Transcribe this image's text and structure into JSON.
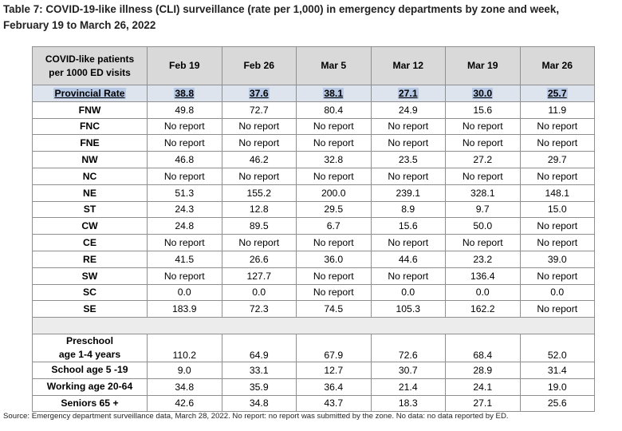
{
  "title_line1": "Table 7:  COVID-19-like illness (CLI) surveillance (rate per 1,000) in emergency departments by zone and week,",
  "title_line2": "February 19 to March 26, 2022",
  "header": {
    "corner_line1": "COVID-like patients",
    "corner_line2": "per 1000 ED visits",
    "weeks": [
      "Feb 19",
      "Feb 26",
      "Mar 5",
      "Mar 12",
      "Mar 19",
      "Mar 26"
    ]
  },
  "provincial": {
    "label": "Provincial Rate",
    "values": [
      "38.8",
      "37.6",
      "38.1",
      "27.1",
      "30.0",
      "25.7"
    ]
  },
  "zones": [
    {
      "label": "FNW",
      "values": [
        "49.8",
        "72.7",
        "80.4",
        "24.9",
        "15.6",
        "11.9"
      ]
    },
    {
      "label": "FNC",
      "values": [
        "No report",
        "No report",
        "No report",
        "No report",
        "No report",
        "No report"
      ]
    },
    {
      "label": "FNE",
      "values": [
        "No report",
        "No report",
        "No report",
        "No report",
        "No report",
        "No report"
      ]
    },
    {
      "label": "NW",
      "values": [
        "46.8",
        "46.2",
        "32.8",
        "23.5",
        "27.2",
        "29.7"
      ]
    },
    {
      "label": "NC",
      "values": [
        "No report",
        "No report",
        "No report",
        "No report",
        "No report",
        "No report"
      ]
    },
    {
      "label": "NE",
      "values": [
        "51.3",
        "155.2",
        "200.0",
        "239.1",
        "328.1",
        "148.1"
      ]
    },
    {
      "label": "ST",
      "values": [
        "24.3",
        "12.8",
        "29.5",
        "8.9",
        "9.7",
        "15.0"
      ]
    },
    {
      "label": "CW",
      "values": [
        "24.8",
        "89.5",
        "6.7",
        "15.6",
        "50.0",
        "No report"
      ]
    },
    {
      "label": "CE",
      "values": [
        "No report",
        "No report",
        "No report",
        "No report",
        "No report",
        "No report"
      ]
    },
    {
      "label": "RE",
      "values": [
        "41.5",
        "26.6",
        "36.0",
        "44.6",
        "23.2",
        "39.0"
      ]
    },
    {
      "label": "SW",
      "values": [
        "No report",
        "127.7",
        "No report",
        "No report",
        "136.4",
        "No report"
      ]
    },
    {
      "label": "SC",
      "values": [
        "0.0",
        "0.0",
        "No report",
        "0.0",
        "0.0",
        "0.0"
      ]
    },
    {
      "label": "SE",
      "values": [
        "183.9",
        "72.3",
        "74.5",
        "105.3",
        "162.2",
        "No report"
      ]
    }
  ],
  "ages": [
    {
      "label_line1": "Preschool",
      "label_line2": "age 1-4 years",
      "values": [
        "110.2",
        "64.9",
        "67.9",
        "72.6",
        "68.4",
        "52.0"
      ]
    },
    {
      "label_line1": "School age 5 -19",
      "label_line2": "",
      "values": [
        "9.0",
        "33.1",
        "12.7",
        "30.7",
        "28.9",
        "31.4"
      ]
    },
    {
      "label_line1": "Working age 20-64",
      "label_line2": "",
      "values": [
        "34.8",
        "35.9",
        "36.4",
        "21.4",
        "24.1",
        "19.0"
      ]
    },
    {
      "label_line1": "Seniors 65 +",
      "label_line2": "",
      "values": [
        "42.6",
        "34.8",
        "43.7",
        "18.3",
        "27.1",
        "25.6"
      ]
    }
  ],
  "footnote": "Source: Emergency department surveillance data, March 28, 2022. No report: no report was submitted by the zone. No data: no data reported by ED."
}
